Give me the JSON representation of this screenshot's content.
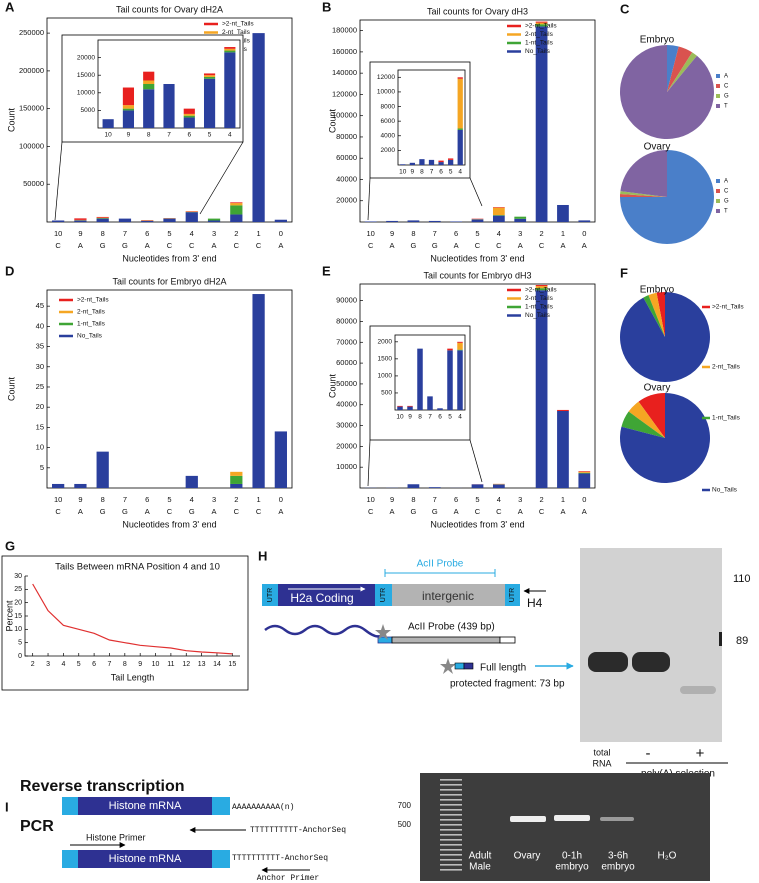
{
  "chart_data": [
    {
      "type": "bar",
      "stacked": true,
      "panel": "A",
      "title": "Tail counts for Ovary dH2A",
      "x_label": "Nucleotides from 3' end",
      "y_label": "Count",
      "categories": [
        "10",
        "9",
        "8",
        "7",
        "6",
        "5",
        "4",
        "3",
        "2",
        "1",
        "0"
      ],
      "category_sublabels": [
        "C",
        "A",
        "G",
        "G",
        "A",
        "C",
        "C",
        "A",
        "C",
        "C",
        "A"
      ],
      "series": [
        {
          "name": ">2-nt_Tails",
          "color": "#e8201e",
          "values": [
            0,
            2000,
            1000,
            0,
            500,
            300,
            500,
            0,
            1000,
            0,
            0
          ]
        },
        {
          "name": "2-nt_Tails",
          "color": "#f5a623",
          "values": [
            0,
            500,
            500,
            0,
            300,
            300,
            500,
            0,
            3000,
            0,
            0
          ]
        },
        {
          "name": "1-nt_Tails",
          "color": "#3fa535",
          "values": [
            0,
            300,
            700,
            0,
            200,
            200,
            300,
            2500,
            12000,
            0,
            0
          ]
        },
        {
          "name": "No_Tails",
          "color": "#2a3f9d",
          "values": [
            2000,
            2000,
            4500,
            4500,
            1500,
            4500,
            13000,
            2000,
            10000,
            250000,
            3000
          ]
        }
      ],
      "ylim": [
        0,
        270000
      ],
      "yticks": [
        50000,
        100000,
        150000,
        200000,
        250000
      ],
      "legend": "upper right"
    },
    {
      "type": "bar",
      "stacked": true,
      "inset": true,
      "categories": [
        "10",
        "9",
        "8",
        "7",
        "6",
        "5",
        "4"
      ],
      "series": [
        {
          "color": "#e8201e",
          "values": [
            0,
            5000,
            2500,
            0,
            1500,
            500,
            500
          ]
        },
        {
          "color": "#f5a623",
          "values": [
            0,
            1000,
            1000,
            0,
            500,
            500,
            500
          ]
        },
        {
          "color": "#3fa535",
          "values": [
            0,
            500,
            1500,
            0,
            500,
            500,
            500
          ]
        },
        {
          "color": "#2a3f9d",
          "values": [
            2500,
            5000,
            11000,
            12500,
            3000,
            14000,
            21500
          ]
        }
      ],
      "ylim": [
        0,
        25000
      ],
      "yticks": [
        5000,
        10000,
        15000,
        20000
      ]
    },
    {
      "type": "bar",
      "stacked": true,
      "panel": "B",
      "title": "Tail counts for Ovary dH3",
      "x_label": "Nucleotides from 3' end",
      "y_label": "Count",
      "categories": [
        "10",
        "9",
        "8",
        "7",
        "6",
        "5",
        "4",
        "3",
        "2",
        "1",
        "0"
      ],
      "category_sublabels": [
        "C",
        "A",
        "G",
        "G",
        "A",
        "C",
        "C",
        "A",
        "C",
        "A",
        "A"
      ],
      "series": [
        {
          "name": ">2-nt_Tails",
          "color": "#e8201e",
          "values": [
            0,
            0,
            0,
            0,
            0,
            300,
            500,
            0,
            1000,
            0,
            0
          ]
        },
        {
          "name": "2-nt_Tails",
          "color": "#f5a623",
          "values": [
            0,
            0,
            0,
            0,
            0,
            200,
            7000,
            0,
            1500,
            0,
            0
          ]
        },
        {
          "name": "1-nt_Tails",
          "color": "#3fa535",
          "values": [
            0,
            0,
            0,
            0,
            0,
            100,
            500,
            2000,
            2000,
            0,
            0
          ]
        },
        {
          "name": "No_Tails",
          "color": "#2a3f9d",
          "values": [
            500,
            1000,
            1500,
            1000,
            500,
            2500,
            6000,
            3000,
            184000,
            16000,
            1500
          ]
        }
      ],
      "ylim": [
        0,
        190000
      ],
      "yticks": [
        20000,
        40000,
        60000,
        80000,
        100000,
        120000,
        140000,
        160000,
        180000
      ],
      "legend": "upper right"
    },
    {
      "type": "bar",
      "stacked": true,
      "inset": true,
      "categories": [
        "10",
        "9",
        "8",
        "7",
        "6",
        "5",
        "4"
      ],
      "series": [
        {
          "color": "#e8201e",
          "values": [
            0,
            0,
            0,
            0,
            200,
            200,
            200
          ]
        },
        {
          "color": "#f5a623",
          "values": [
            0,
            0,
            0,
            0,
            0,
            0,
            6800
          ]
        },
        {
          "color": "#3fa535",
          "values": [
            0,
            0,
            0,
            0,
            0,
            0,
            200
          ]
        },
        {
          "color": "#2a3f9d",
          "values": [
            100,
            300,
            800,
            700,
            400,
            700,
            4800
          ]
        }
      ],
      "ylim": [
        0,
        13000
      ],
      "yticks": [
        2000,
        4000,
        6000,
        8000,
        10000,
        12000
      ]
    },
    {
      "type": "pie",
      "panel": "C",
      "legend": "per-pie",
      "counterclockwise": false,
      "categories": [
        "A",
        "C",
        "G",
        "T"
      ],
      "colors": [
        "#4a7fc9",
        "#d9534f",
        "#9bbb59",
        "#8064a2"
      ],
      "pies": [
        {
          "name": "Embryo",
          "values": [
            4,
            5,
            2,
            89
          ]
        },
        {
          "name": "Ovary",
          "values": [
            75,
            1,
            1,
            23
          ]
        }
      ]
    },
    {
      "type": "bar",
      "stacked": true,
      "panel": "D",
      "title": "Tail counts for Embryo dH2A",
      "x_label": "Nucleotides from 3' end",
      "y_label": "Count",
      "categories": [
        "10",
        "9",
        "8",
        "7",
        "6",
        "5",
        "4",
        "3",
        "2",
        "1",
        "0"
      ],
      "category_sublabels": [
        "C",
        "A",
        "G",
        "G",
        "A",
        "C",
        "G",
        "A",
        "C",
        "C",
        "A"
      ],
      "series": [
        {
          "name": ">2-nt_Tails",
          "color": "#e8201e",
          "values": [
            0,
            0,
            0,
            0,
            0,
            0,
            0,
            0,
            0,
            0,
            0
          ]
        },
        {
          "name": "2-nt_Tails",
          "color": "#f5a623",
          "values": [
            0,
            0,
            0,
            0,
            0,
            0,
            0,
            0,
            1,
            0,
            0
          ]
        },
        {
          "name": "1-nt_Tails",
          "color": "#3fa535",
          "values": [
            0,
            0,
            0,
            0,
            0,
            0,
            0,
            0,
            2,
            0,
            0
          ]
        },
        {
          "name": "No_Tails",
          "color": "#2a3f9d",
          "values": [
            1,
            1,
            9,
            0,
            0,
            0,
            3,
            0,
            1,
            48,
            14
          ]
        }
      ],
      "ylim": [
        0,
        49
      ],
      "yticks": [
        5,
        10,
        15,
        20,
        25,
        30,
        35,
        40,
        45
      ],
      "legend": "upper left"
    },
    {
      "type": "bar",
      "stacked": true,
      "panel": "E",
      "title": "Tail counts for Embryo dH3",
      "x_label": "Nucleotides from 3' end",
      "y_label": "Count",
      "categories": [
        "10",
        "9",
        "8",
        "7",
        "6",
        "5",
        "4",
        "3",
        "2",
        "1",
        "0"
      ],
      "category_sublabels": [
        "C",
        "A",
        "G",
        "G",
        "A",
        "C",
        "C",
        "A",
        "C",
        "A",
        "A"
      ],
      "series": [
        {
          "name": ">2-nt_Tails",
          "color": "#e8201e",
          "values": [
            0,
            0,
            0,
            0,
            0,
            50,
            30,
            0,
            500,
            500,
            300
          ]
        },
        {
          "name": "2-nt_Tails",
          "color": "#f5a623",
          "values": [
            0,
            0,
            0,
            0,
            0,
            0,
            200,
            0,
            1000,
            0,
            500
          ]
        },
        {
          "name": "1-nt_Tails",
          "color": "#3fa535",
          "values": [
            0,
            0,
            0,
            0,
            0,
            0,
            20,
            0,
            1000,
            0,
            300
          ]
        },
        {
          "name": "No_Tails",
          "color": "#2a3f9d",
          "values": [
            100,
            100,
            1800,
            400,
            50,
            1750,
            1750,
            0,
            95000,
            37000,
            7000
          ]
        }
      ],
      "ylim": [
        0,
        98000
      ],
      "yticks": [
        10000,
        20000,
        30000,
        40000,
        50000,
        60000,
        70000,
        80000,
        90000
      ],
      "legend": "upper right"
    },
    {
      "type": "bar",
      "stacked": true,
      "inset": true,
      "categories": [
        "10",
        "9",
        "8",
        "7",
        "6",
        "5",
        "4"
      ],
      "series": [
        {
          "color": "#e8201e",
          "values": [
            20,
            20,
            0,
            0,
            0,
            50,
            30
          ]
        },
        {
          "color": "#f5a623",
          "values": [
            0,
            0,
            0,
            0,
            0,
            0,
            200
          ]
        },
        {
          "color": "#3fa535",
          "values": [
            0,
            0,
            0,
            0,
            0,
            0,
            20
          ]
        },
        {
          "color": "#2a3f9d",
          "values": [
            100,
            100,
            1800,
            400,
            50,
            1750,
            1750
          ]
        }
      ],
      "ylim": [
        0,
        2200
      ],
      "yticks": [
        500,
        1000,
        1500,
        2000
      ]
    },
    {
      "type": "pie",
      "panel": "F",
      "legend": "shared",
      "counterclockwise": true,
      "categories": [
        ">2-nt_Tails",
        "2-nt_Tails",
        "1-nt_Tails",
        "No_Tails"
      ],
      "colors": [
        "#e8201e",
        "#f5a623",
        "#3fa535",
        "#2a3f9d"
      ],
      "pies": [
        {
          "name": "Embryo",
          "values": [
            3,
            3,
            2,
            92
          ]
        },
        {
          "name": "Ovary",
          "values": [
            10,
            5,
            6,
            79
          ]
        }
      ]
    },
    {
      "type": "line",
      "panel": "G",
      "title": "Tails Between mRNA Position 4 and 10",
      "x_label": "Tail Length",
      "y_label": "Percent",
      "x": [
        2,
        3,
        4,
        5,
        6,
        7,
        8,
        9,
        10,
        11,
        12,
        13,
        14,
        15
      ],
      "values": [
        27,
        17,
        11.5,
        10,
        8.5,
        6,
        5,
        4,
        3.5,
        3,
        2,
        1.5,
        1.2,
        0.8
      ],
      "color": "#e03030",
      "xlim": [
        1.5,
        15.5
      ],
      "xticks": [
        2,
        3,
        4,
        5,
        6,
        7,
        8,
        9,
        10,
        11,
        12,
        13,
        14,
        15
      ],
      "ylim": [
        0,
        30
      ],
      "yticks": [
        0,
        5,
        10,
        15,
        20,
        25,
        30
      ]
    }
  ],
  "panel_H": {
    "panel": "H",
    "probe_label": "AcII Probe",
    "utr": "UTR",
    "coding": "H2a Coding",
    "intergenic": "intergenic",
    "h4": "H4",
    "probe_full": "AcII Probe (439 bp)",
    "full_length": "Full length",
    "fragment": "protected fragment: 73 bp",
    "markers": [
      "110",
      "89"
    ],
    "lanes": [
      [
        "total",
        "RNA"
      ],
      [
        "-"
      ],
      [
        "+"
      ]
    ],
    "lane_group": "poly(A) selection"
  },
  "panel_I": {
    "panel": "I",
    "rt_title": "Reverse transcription",
    "pcr_title": "PCR",
    "mrna": "Histone mRNA",
    "polya": "AAAAAAAAAA(n)",
    "anchor": "TTTTTTTTTT-AnchorSeq",
    "histone_primer": "Histone Primer",
    "anchor_primer": "Anchor Primer",
    "markers": [
      "700",
      "500"
    ],
    "lanes": [
      [
        "Adult",
        "Male"
      ],
      [
        "Ovary"
      ],
      [
        "0-1h",
        "embryo"
      ],
      [
        "3-6h",
        "embryo"
      ],
      [
        "H₂O"
      ]
    ]
  }
}
